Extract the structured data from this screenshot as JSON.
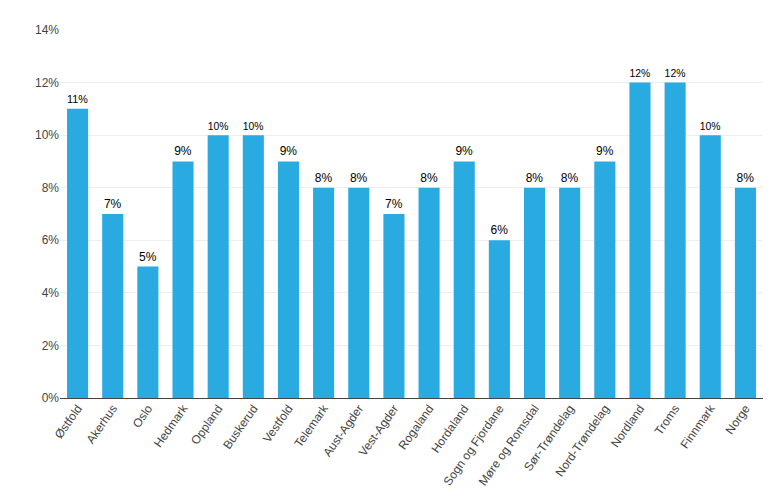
{
  "chart_data": {
    "type": "bar",
    "categories": [
      "Østfold",
      "Akerhus",
      "Oslo",
      "Hedmark",
      "Oppland",
      "Buskerud",
      "Vestfold",
      "Telemark",
      "Aust-Agder",
      "Vest-Agder",
      "Rogaland",
      "Hordaland",
      "Sogn og Fjordane",
      "Møre og Romsdal",
      "Sør-Trøndelag",
      "Nord-Trøndelag",
      "Nordland",
      "Troms",
      "Finnmark",
      "Norge"
    ],
    "values": [
      11,
      7,
      5,
      9,
      10,
      10,
      9,
      8,
      8,
      7,
      8,
      9,
      6,
      8,
      8,
      9,
      12,
      12,
      10,
      8
    ],
    "value_labels": [
      "11%",
      "7%",
      "5%",
      "9%",
      "10%",
      "10%",
      "9%",
      "8%",
      "8%",
      "7%",
      "8%",
      "9%",
      "6%",
      "8%",
      "8%",
      "9%",
      "12%",
      "12%",
      "10%",
      "8%"
    ],
    "data_labels": true,
    "color": "#29ABE2",
    "ylim": [
      0,
      14
    ],
    "yticks": [
      {
        "value": 0,
        "label": "0%"
      },
      {
        "value": 2,
        "label": "2%"
      },
      {
        "value": 4,
        "label": "4%"
      },
      {
        "value": 6,
        "label": "6%"
      },
      {
        "value": 8,
        "label": "8%"
      },
      {
        "value": 10,
        "label": "10%"
      },
      {
        "value": 12,
        "label": "12%"
      },
      {
        "value": 14,
        "label": "14%"
      }
    ],
    "grid": true
  }
}
